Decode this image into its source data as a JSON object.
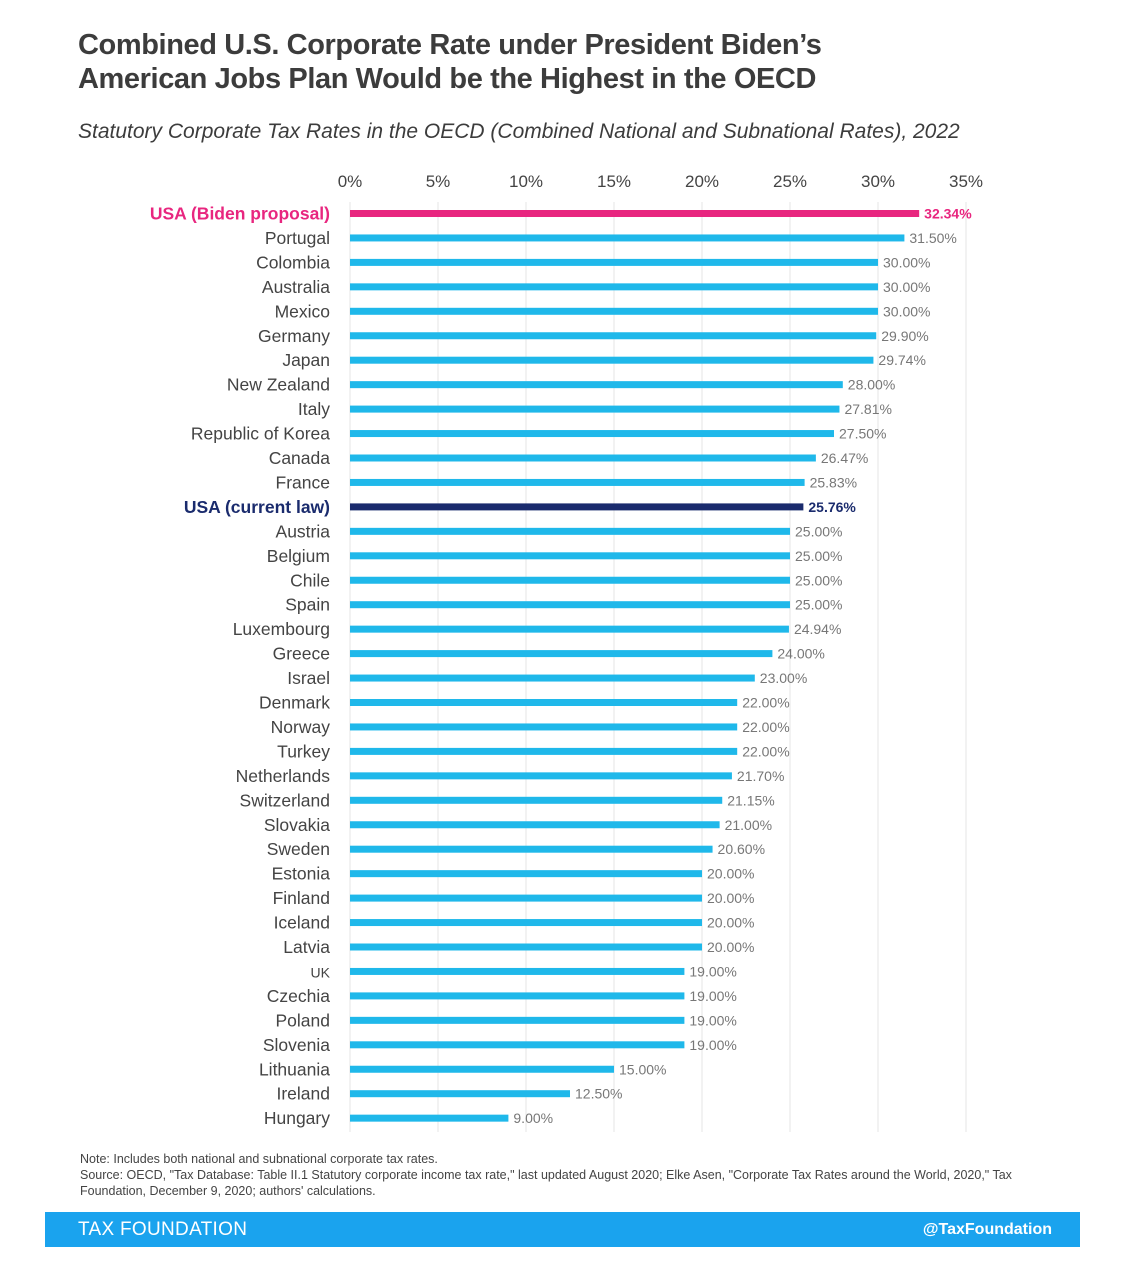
{
  "header": {
    "title_line1": "Combined U.S. Corporate Rate under President Biden’s",
    "title_line2": "American Jobs Plan Would be the Highest in the OECD",
    "subtitle": "Statutory Corporate Tax Rates in the OECD (Combined National and Subnational Rates), 2022"
  },
  "colors": {
    "bar_default": "#1fb8ea",
    "bar_biden": "#e8267f",
    "bar_current": "#1a2b6d",
    "label_default": "#777777",
    "gridline": "#e6e6e6"
  },
  "chart_data": {
    "type": "bar",
    "orientation": "horizontal",
    "title": "Statutory Corporate Tax Rates in the OECD (Combined National and Subnational Rates), 2022",
    "xlim": [
      0,
      35
    ],
    "xticks": [
      "0%",
      "5%",
      "10%",
      "15%",
      "20%",
      "25%",
      "30%",
      "35%"
    ],
    "xtick_values": [
      0,
      5,
      10,
      15,
      20,
      25,
      30,
      35
    ],
    "grid": true,
    "series": [
      {
        "name": "Statutory corporate tax rate",
        "categories": [
          "USA (Biden proposal)",
          "Portugal",
          "Colombia",
          "Australia",
          "Mexico",
          "Germany",
          "Japan",
          "New Zealand",
          "Italy",
          "Republic of Korea",
          "Canada",
          "France",
          "USA (current law)",
          "Austria",
          "Belgium",
          "Chile",
          "Spain",
          "Luxembourg",
          "Greece",
          "Israel",
          "Denmark",
          "Norway",
          "Turkey",
          "Netherlands",
          "Switzerland",
          "Slovakia",
          "Sweden",
          "Estonia",
          "Finland",
          "Iceland",
          "Latvia",
          "UK",
          "Czechia",
          "Poland",
          "Slovenia",
          "Lithuania",
          "Ireland",
          "Hungary"
        ],
        "values": [
          32.34,
          31.5,
          30.0,
          30.0,
          30.0,
          29.9,
          29.74,
          28.0,
          27.81,
          27.5,
          26.47,
          25.83,
          25.76,
          25.0,
          25.0,
          25.0,
          25.0,
          24.94,
          24.0,
          23.0,
          22.0,
          22.0,
          22.0,
          21.7,
          21.15,
          21.0,
          20.6,
          20.0,
          20.0,
          20.0,
          20.0,
          19.0,
          19.0,
          19.0,
          19.0,
          15.0,
          12.5,
          9.0
        ],
        "value_labels": [
          "32.34%",
          "31.50%",
          "30.00%",
          "30.00%",
          "30.00%",
          "29.90%",
          "29.74%",
          "28.00%",
          "27.81%",
          "27.50%",
          "26.47%",
          "25.83%",
          "25.76%",
          "25.00%",
          "25.00%",
          "25.00%",
          "25.00%",
          "24.94%",
          "24.00%",
          "23.00%",
          "22.00%",
          "22.00%",
          "22.00%",
          "21.70%",
          "21.15%",
          "21.00%",
          "20.60%",
          "20.00%",
          "20.00%",
          "20.00%",
          "20.00%",
          "19.00%",
          "19.00%",
          "19.00%",
          "19.00%",
          "15.00%",
          "12.50%",
          "9.00%"
        ],
        "highlight": [
          "biden",
          "",
          "",
          "",
          "",
          "",
          "",
          "",
          "",
          "",
          "",
          "",
          "current",
          "",
          "",
          "",
          "",
          "",
          "",
          "",
          "",
          "",
          "",
          "",
          "",
          "",
          "",
          "",
          "",
          "",
          "",
          "",
          "",
          "",
          "",
          "",
          "",
          ""
        ]
      }
    ]
  },
  "notes": {
    "note": "Note: Includes both national and subnational corporate tax rates.",
    "source": "Source: OECD, \"Tax Database: Table II.1 Statutory corporate income tax rate,\" last updated August 2020; Elke Asen, \"Corporate Tax Rates around the World, 2020,\" Tax Foundation, December 9, 2020; authors' calculations."
  },
  "footer": {
    "brand": "TAX FOUNDATION",
    "handle": "@TaxFoundation"
  }
}
